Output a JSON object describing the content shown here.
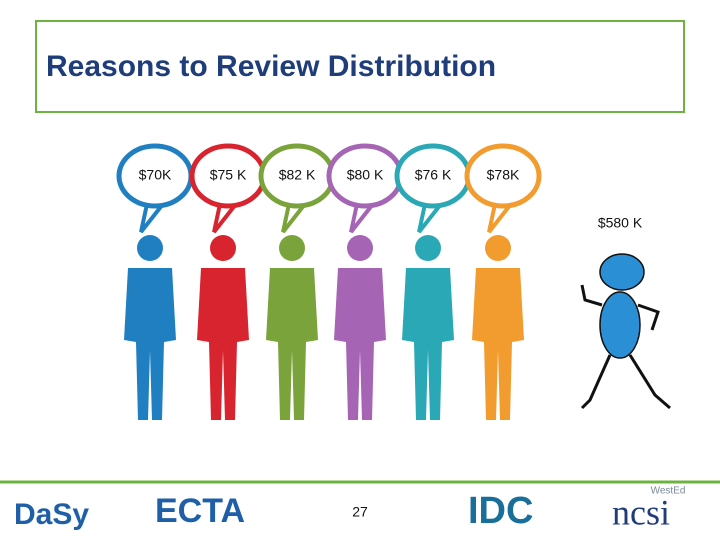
{
  "title": "Reasons to Review Distribution",
  "bubbles": [
    "$70K",
    "$75 K",
    "$82 K",
    "$80 K",
    "$76 K",
    "$78K"
  ],
  "figure_label": "$580 K",
  "footer": {
    "page_number": "27",
    "logos": {
      "dasy": "DaSy",
      "ecta": "ECTA",
      "idc": "IDC",
      "wested": "WestEd",
      "ncsi": "ncsi"
    }
  }
}
